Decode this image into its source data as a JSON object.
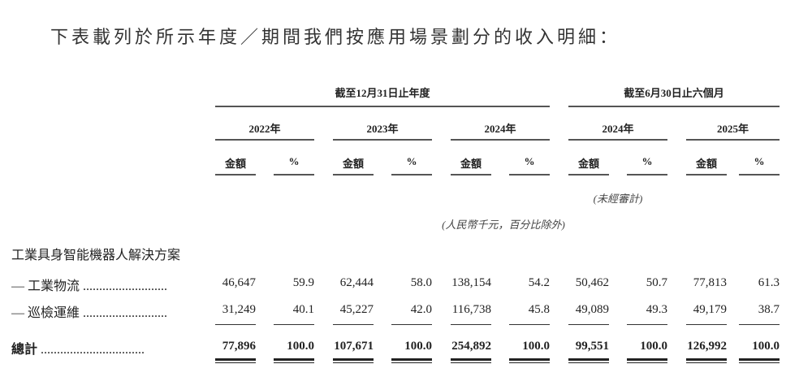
{
  "title": "下表載列於所示年度／期間我們按應用場景劃分的收入明細：",
  "header": {
    "annual": "截至12月31日止年度",
    "interim": "截至6月30日止六個月",
    "years": [
      "2022年",
      "2023年",
      "2024年",
      "2024年",
      "2025年"
    ],
    "amount": "金額",
    "pct": "%",
    "unaudited": "(未經審計)",
    "unit": "(人民幣千元，百分比除外)"
  },
  "section": "工業具身智能機器人解決方案",
  "rows": [
    {
      "label": "— 工業物流",
      "values": [
        "46,647",
        "59.9",
        "62,444",
        "58.0",
        "138,154",
        "54.2",
        "50,462",
        "50.7",
        "77,813",
        "61.3"
      ]
    },
    {
      "label": "— 巡檢運維",
      "values": [
        "31,249",
        "40.1",
        "45,227",
        "42.0",
        "116,738",
        "45.8",
        "49,089",
        "49.3",
        "49,179",
        "38.7"
      ]
    }
  ],
  "total": {
    "label": "總計",
    "values": [
      "77,896",
      "100.0",
      "107,671",
      "100.0",
      "254,892",
      "100.0",
      "99,551",
      "100.0",
      "126,992",
      "100.0"
    ]
  }
}
